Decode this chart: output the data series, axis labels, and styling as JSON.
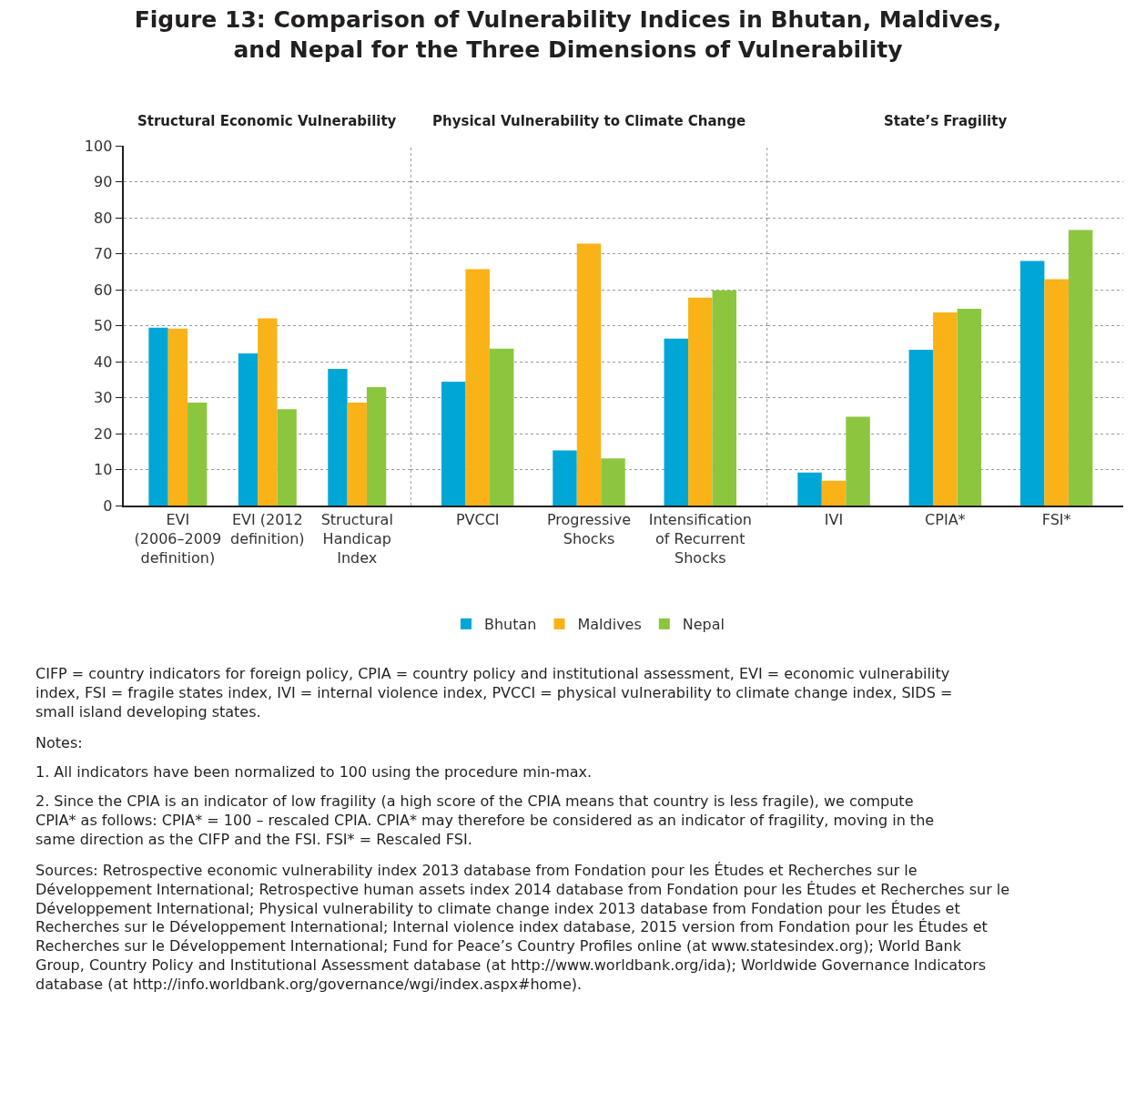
{
  "chart_data": [
    {
      "type": "bar",
      "title": "Figure 13: Comparison of Vulnerability Indices in Bhutan, Maldives, and Nepal for the Three Dimensions of Vulnerability",
      "subtitle": "Structural Economic Vulnerability",
      "categories": [
        "EVI (2006–2009 definition)",
        "EVI (2012 definition)",
        "Structural Handicap Index"
      ],
      "series": [
        {
          "name": "Bhutan",
          "color": "#00a6d6",
          "values": [
            49.4,
            42.3,
            38.0
          ]
        },
        {
          "name": "Maldives",
          "color": "#f9b218",
          "values": [
            49.2,
            52.0,
            28.6
          ]
        },
        {
          "name": "Nepal",
          "color": "#8cc63f",
          "values": [
            28.6,
            26.8,
            32.9
          ]
        }
      ],
      "ylim": [
        0,
        100
      ],
      "yticks": [
        0,
        10,
        20,
        30,
        40,
        50,
        60,
        70,
        80,
        90,
        100
      ],
      "grid": "y",
      "legend": "bottom",
      "annotations": [
        "CIFP = country indicators for foreign policy, CPIA = country policy and institutional assessment, EVI = economic vulnerability index, FSI = fragile states index, IVI = internal violence index, PVCCI = physical vulnerability to climate change index, SIDS = small island developing states.",
        "Notes:",
        "1. All indicators have been normalized to 100 using the procedure min-max.",
        "2. Since the CPIA is an indicator of low fragility (a high score of the CPIA means that country is less fragile), we compute CPIA* as follows: CPIA* = 100 – rescaled CPIA. CPIA* may therefore be considered as an indicator of fragility, moving in the same direction as the CIFP and the FSI. FSI* = Rescaled FSI.",
        "Sources: Retrospective economic vulnerability index 2013 database from Fondation pour les Études et Recherches sur le Développement International; Retrospective human assets index 2014 database from Fondation pour les Études et Recherches sur le Développement International; Physical vulnerability to climate change index 2013 database from Fondation pour les Études et Recherches sur le Développement International; Internal violence index database, 2015 version from Fondation pour les Études et Recherches sur le Développement International; Fund for Peace’s Country Profiles online (at www.statesindex.org); World Bank Group, Country Policy and Institutional Assessment database (at http://www.worldbank.org/ida); Worldwide Governance Indicators database (at http://info.worldbank.org/governance/wgi/index.aspx#home)."
      ]
    },
    {
      "type": "bar",
      "subtitle": "Physical Vulnerability to Climate Change",
      "categories": [
        "PVCCI",
        "Progressive Shocks",
        "Intensification of Recurrent Shocks"
      ],
      "series": [
        {
          "name": "Bhutan",
          "color": "#00a6d6",
          "values": [
            34.4,
            15.3,
            46.4
          ]
        },
        {
          "name": "Maldives",
          "color": "#f9b218",
          "values": [
            65.7,
            72.8,
            57.8
          ]
        },
        {
          "name": "Nepal",
          "color": "#8cc63f",
          "values": [
            43.6,
            13.1,
            59.8
          ]
        }
      ],
      "ylim": [
        0,
        100
      ],
      "yticks": [
        0,
        10,
        20,
        30,
        40,
        50,
        60,
        70,
        80,
        90,
        100
      ],
      "grid": "y",
      "tick_labels": "x"
    },
    {
      "type": "bar",
      "subtitle": "State’s Fragility",
      "categories": [
        "IVI",
        "CPIA*",
        "FSI*"
      ],
      "series": [
        {
          "name": "Bhutan",
          "color": "#00a6d6",
          "values": [
            9.2,
            43.3,
            68.0
          ]
        },
        {
          "name": "Maldives",
          "color": "#f9b218",
          "values": [
            6.9,
            53.7,
            62.9
          ]
        },
        {
          "name": "Nepal",
          "color": "#8cc63f",
          "values": [
            24.7,
            54.7,
            76.6
          ]
        }
      ],
      "ylim": [
        0,
        100
      ],
      "yticks": [
        0,
        10,
        20,
        30,
        40,
        50,
        60,
        70,
        80,
        90,
        100
      ],
      "grid": "y",
      "tick_labels": "x"
    }
  ]
}
